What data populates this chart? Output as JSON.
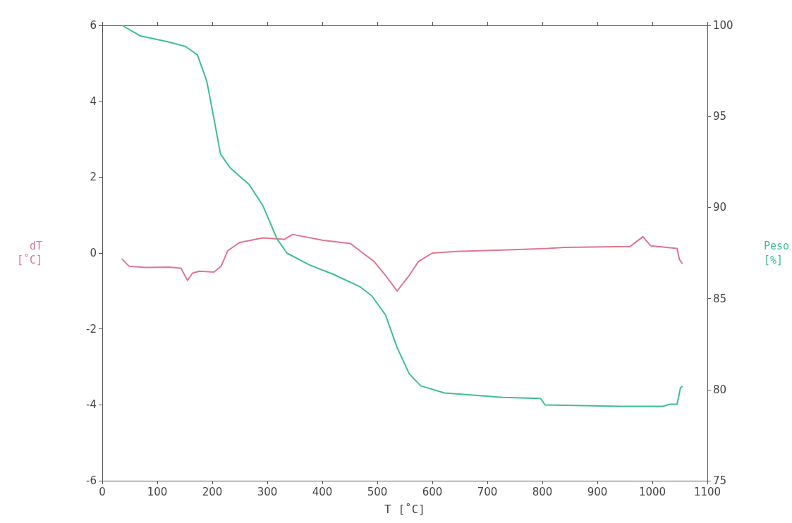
{
  "chart_data": {
    "type": "line",
    "xlabel": "T [˚C]",
    "ylabel": "dT\n[˚C]",
    "y2label": "Peso\n[%]",
    "xlim": [
      0,
      1100
    ],
    "xticks": [
      0,
      100,
      200,
      300,
      400,
      500,
      600,
      700,
      800,
      900,
      1000,
      1100
    ],
    "ylim": [
      -6,
      6
    ],
    "yticks": [
      -6,
      -4,
      -2,
      0,
      2,
      4,
      6
    ],
    "y2lim": [
      75,
      100
    ],
    "y2ticks": [
      75,
      80,
      85,
      90,
      95,
      100
    ],
    "grid": false,
    "marker": "none",
    "line_style": "solid",
    "series": [
      {
        "color": "#e07590",
        "x": [
          36,
          49,
          79,
          122,
          143,
          155,
          164,
          177,
          203,
          216,
          228,
          250,
          292,
          331,
          346,
          400,
          451,
          472,
          494,
          515,
          536,
          558,
          575,
          600,
          643,
          728,
          810,
          840,
          959,
          983,
          997,
          1045,
          1049,
          1054
        ],
        "values": [
          -0.16,
          -0.35,
          -0.38,
          -0.37,
          -0.4,
          -0.72,
          -0.53,
          -0.48,
          -0.5,
          -0.35,
          0.06,
          0.28,
          0.4,
          0.36,
          0.49,
          0.34,
          0.25,
          0.02,
          -0.22,
          -0.59,
          -1.0,
          -0.59,
          -0.22,
          0.0,
          0.04,
          0.08,
          0.12,
          0.15,
          0.17,
          0.43,
          0.19,
          0.12,
          -0.16,
          -0.27
        ]
      },
      {
        "color": "#3dbf90",
        "axis": "y2",
        "x": [
          36,
          62,
          68,
          122,
          151,
          173,
          190,
          203,
          215,
          233,
          267,
          292,
          318,
          336,
          378,
          421,
          468,
          490,
          515,
          536,
          558,
          579,
          622,
          728,
          797,
          805,
          946,
          1019,
          1032,
          1045,
          1051,
          1054
        ],
        "values": [
          100.0,
          99.55,
          99.43,
          99.08,
          98.85,
          98.38,
          96.94,
          94.88,
          92.93,
          92.16,
          91.26,
          90.1,
          88.26,
          87.49,
          86.83,
          86.32,
          85.66,
          85.15,
          84.1,
          82.31,
          80.87,
          80.21,
          79.82,
          79.58,
          79.51,
          79.16,
          79.08,
          79.08,
          79.2,
          79.2,
          80.09,
          80.17
        ]
      }
    ]
  }
}
